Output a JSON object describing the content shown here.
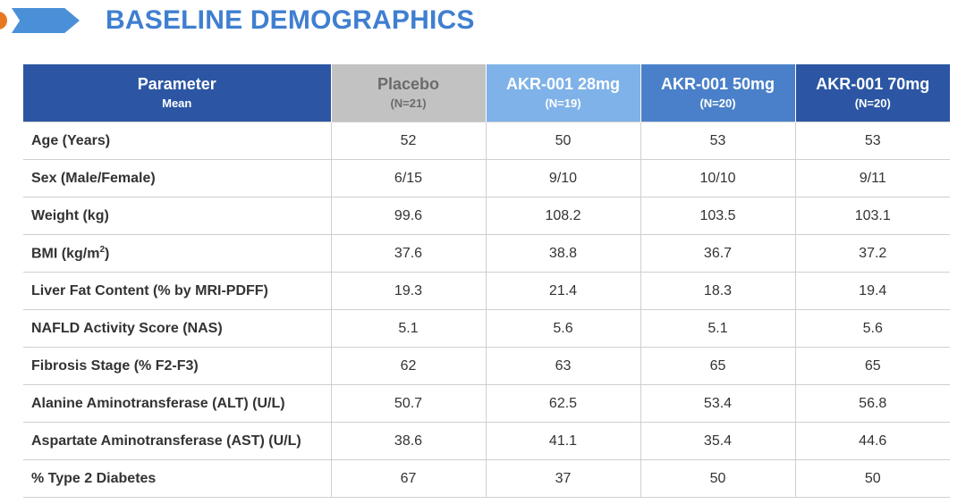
{
  "header": {
    "title": "BASELINE DEMOGRAPHICS"
  },
  "table": {
    "columns": [
      {
        "label": "Parameter",
        "sub": "Mean",
        "color": "#2c56a3"
      },
      {
        "label": "Placebo",
        "sub": "(N=21)",
        "color": "#c2c2c2"
      },
      {
        "label": "AKR-001 28mg",
        "sub": "(N=19)",
        "color": "#7fb2e8"
      },
      {
        "label": "AKR-001 50mg",
        "sub": "(N=20)",
        "color": "#4a80c9"
      },
      {
        "label": "AKR-001 70mg",
        "sub": "(N=20)",
        "color": "#2c56a3"
      }
    ],
    "rows": [
      {
        "label": "Age (Years)",
        "values": [
          "52",
          "50",
          "53",
          "53"
        ]
      },
      {
        "label": "Sex (Male/Female)",
        "values": [
          "6/15",
          "9/10",
          "10/10",
          "9/11"
        ]
      },
      {
        "label": "Weight (kg)",
        "values": [
          "99.6",
          "108.2",
          "103.5",
          "103.1"
        ]
      },
      {
        "label": "BMI (kg/m",
        "label_sup": "2",
        "label_tail": ")",
        "values": [
          "37.6",
          "38.8",
          "36.7",
          "37.2"
        ]
      },
      {
        "label": "Liver Fat Content (% by MRI-PDFF)",
        "values": [
          "19.3",
          "21.4",
          "18.3",
          "19.4"
        ]
      },
      {
        "label": "NAFLD Activity Score (NAS)",
        "values": [
          "5.1",
          "5.6",
          "5.1",
          "5.6"
        ]
      },
      {
        "label": "Fibrosis Stage (% F2-F3)",
        "values": [
          "62",
          "63",
          "65",
          "65"
        ]
      },
      {
        "label": "Alanine Aminotransferase (ALT) (U/L)",
        "values": [
          "50.7",
          "62.5",
          "53.4",
          "56.8"
        ]
      },
      {
        "label": "Aspartate Aminotransferase (AST) (U/L)",
        "values": [
          "38.6",
          "41.1",
          "35.4",
          "44.6"
        ]
      },
      {
        "label": "% Type 2 Diabetes",
        "values": [
          "67",
          "37",
          "50",
          "50"
        ]
      }
    ]
  }
}
